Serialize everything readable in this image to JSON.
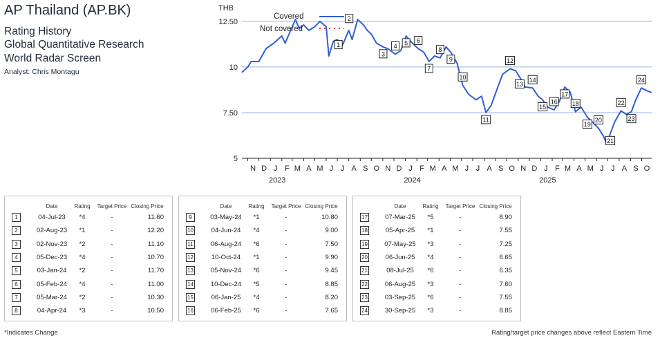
{
  "header": {
    "company": "AP Thailand (AP.BK)",
    "line1": "Rating History",
    "line2": "Global Quantitative Research",
    "line3": "World Radar Screen",
    "analyst": "Analyst: Chris Montagu"
  },
  "chart_data": {
    "type": "line",
    "ylabel": "THB",
    "ylim": [
      5,
      13.25
    ],
    "yticks": [
      5,
      7.5,
      10,
      12.5
    ],
    "ytick_labels": [
      "5",
      "7.50",
      "10",
      "12.50"
    ],
    "grid": true,
    "x_start": "2022-10-16",
    "x_end": "2025-10-28",
    "month_labels": [
      "N",
      "D",
      "J",
      "F",
      "M",
      "A",
      "M",
      "J",
      "J",
      "A",
      "S",
      "O",
      "N",
      "D",
      "J",
      "F",
      "M",
      "A",
      "M",
      "J",
      "J",
      "A",
      "S",
      "O",
      "N",
      "D",
      "J",
      "F",
      "M",
      "A",
      "M",
      "J",
      "J",
      "A",
      "S",
      "O"
    ],
    "year_labels": [
      {
        "label": "2023",
        "date": "2023-01-01"
      },
      {
        "label": "2024",
        "date": "2024-01-01"
      },
      {
        "label": "2025",
        "date": "2025-01-01"
      }
    ],
    "legend": [
      {
        "label": "Covered",
        "style": "solid",
        "color": "#2f5ed8"
      },
      {
        "label": "Not covered",
        "style": "dotted",
        "color": "#e83a3a"
      }
    ],
    "series": [
      {
        "name": "Covered",
        "color": "#2f5ed8",
        "points": [
          [
            "2022-10-16",
            9.7
          ],
          [
            "2022-11-01",
            10.0
          ],
          [
            "2022-11-10",
            10.3
          ],
          [
            "2022-12-01",
            10.3
          ],
          [
            "2022-12-20",
            11.0
          ],
          [
            "2023-01-10",
            11.3
          ],
          [
            "2023-02-01",
            11.7
          ],
          [
            "2023-02-10",
            11.3
          ],
          [
            "2023-03-01",
            12.2
          ],
          [
            "2023-03-10",
            12.6
          ],
          [
            "2023-03-20",
            12.1
          ],
          [
            "2023-04-01",
            12.3
          ],
          [
            "2023-04-15",
            12.0
          ],
          [
            "2023-05-01",
            12.2
          ],
          [
            "2023-05-15",
            12.5
          ],
          [
            "2023-06-01",
            12.2
          ],
          [
            "2023-06-08",
            10.6
          ],
          [
            "2023-06-20",
            11.4
          ],
          [
            "2023-07-01",
            11.5
          ],
          [
            "2023-07-15",
            11.2
          ],
          [
            "2023-08-01",
            12.0
          ],
          [
            "2023-08-10",
            11.5
          ],
          [
            "2023-08-25",
            12.6
          ],
          [
            "2023-09-10",
            12.3
          ],
          [
            "2023-09-20",
            12.0
          ],
          [
            "2023-10-01",
            11.8
          ],
          [
            "2023-10-15",
            11.3
          ],
          [
            "2023-11-01",
            11.1
          ],
          [
            "2023-11-15",
            11.0
          ],
          [
            "2023-12-05",
            10.7
          ],
          [
            "2023-12-20",
            10.9
          ],
          [
            "2024-01-03",
            11.7
          ],
          [
            "2024-01-20",
            11.3
          ],
          [
            "2024-02-05",
            11.0
          ],
          [
            "2024-02-20",
            10.8
          ],
          [
            "2024-03-05",
            10.3
          ],
          [
            "2024-03-20",
            10.6
          ],
          [
            "2024-04-04",
            10.5
          ],
          [
            "2024-04-20",
            11.1
          ],
          [
            "2024-05-03",
            10.8
          ],
          [
            "2024-05-20",
            10.2
          ],
          [
            "2024-06-04",
            9.0
          ],
          [
            "2024-06-20",
            8.5
          ],
          [
            "2024-07-10",
            8.2
          ],
          [
            "2024-07-25",
            8.4
          ],
          [
            "2024-08-06",
            7.5
          ],
          [
            "2024-08-20",
            7.9
          ],
          [
            "2024-09-05",
            8.8
          ],
          [
            "2024-09-20",
            9.6
          ],
          [
            "2024-10-10",
            9.9
          ],
          [
            "2024-10-25",
            9.8
          ],
          [
            "2024-11-05",
            9.45
          ],
          [
            "2024-11-20",
            8.9
          ],
          [
            "2024-12-10",
            8.85
          ],
          [
            "2024-12-25",
            8.4
          ],
          [
            "2025-01-06",
            8.2
          ],
          [
            "2025-01-20",
            7.8
          ],
          [
            "2025-02-06",
            7.65
          ],
          [
            "2025-02-20",
            8.1
          ],
          [
            "2025-03-07",
            8.9
          ],
          [
            "2025-03-22",
            8.6
          ],
          [
            "2025-04-05",
            7.55
          ],
          [
            "2025-04-20",
            7.8
          ],
          [
            "2025-05-07",
            7.25
          ],
          [
            "2025-05-20",
            7.0
          ],
          [
            "2025-06-06",
            6.65
          ],
          [
            "2025-06-20",
            6.2
          ],
          [
            "2025-06-28",
            5.8
          ],
          [
            "2025-07-08",
            6.35
          ],
          [
            "2025-07-20",
            7.0
          ],
          [
            "2025-08-06",
            7.6
          ],
          [
            "2025-08-20",
            7.4
          ],
          [
            "2025-09-03",
            7.55
          ],
          [
            "2025-09-15",
            8.2
          ],
          [
            "2025-09-30",
            8.85
          ],
          [
            "2025-10-15",
            8.7
          ],
          [
            "2025-10-28",
            8.6
          ]
        ]
      }
    ],
    "markers": [
      {
        "n": "1",
        "date": "2023-07-04",
        "value": 11.6
      },
      {
        "n": "2",
        "date": "2023-08-02",
        "value": 12.2
      },
      {
        "n": "3",
        "date": "2023-11-02",
        "value": 11.1
      },
      {
        "n": "4",
        "date": "2023-12-05",
        "value": 10.7
      },
      {
        "n": "5",
        "date": "2024-01-03",
        "value": 11.7
      },
      {
        "n": "6",
        "date": "2024-02-05",
        "value": 11.0
      },
      {
        "n": "7",
        "date": "2024-03-05",
        "value": 10.3
      },
      {
        "n": "8",
        "date": "2024-04-04",
        "value": 10.5
      },
      {
        "n": "9",
        "date": "2024-05-03",
        "value": 10.8
      },
      {
        "n": "10",
        "date": "2024-06-04",
        "value": 9.0
      },
      {
        "n": "11",
        "date": "2024-08-06",
        "value": 7.5
      },
      {
        "n": "12",
        "date": "2024-10-10",
        "value": 9.9
      },
      {
        "n": "13",
        "date": "2024-11-05",
        "value": 9.45
      },
      {
        "n": "14",
        "date": "2024-12-10",
        "value": 8.85
      },
      {
        "n": "15",
        "date": "2025-01-06",
        "value": 8.2
      },
      {
        "n": "16",
        "date": "2025-02-06",
        "value": 7.65
      },
      {
        "n": "17",
        "date": "2025-03-07",
        "value": 8.9
      },
      {
        "n": "18",
        "date": "2025-04-05",
        "value": 7.55
      },
      {
        "n": "19",
        "date": "2025-05-07",
        "value": 7.25
      },
      {
        "n": "20",
        "date": "2025-06-06",
        "value": 6.65
      },
      {
        "n": "21",
        "date": "2025-07-08",
        "value": 6.35
      },
      {
        "n": "22",
        "date": "2025-08-06",
        "value": 7.6
      },
      {
        "n": "23",
        "date": "2025-09-03",
        "value": 7.55
      },
      {
        "n": "24",
        "date": "2025-09-30",
        "value": 8.85
      }
    ]
  },
  "tables": {
    "headers": {
      "date": "Date",
      "rating": "Rating",
      "target": "Target Price",
      "closing": "Closing Price"
    },
    "rows": [
      {
        "n": "1",
        "date": "04-Jul-23",
        "rating": "*4",
        "target": "-",
        "closing": "11.60"
      },
      {
        "n": "2",
        "date": "02-Aug-23",
        "rating": "*1",
        "target": "-",
        "closing": "12.20"
      },
      {
        "n": "3",
        "date": "02-Nov-23",
        "rating": "*2",
        "target": "-",
        "closing": "11.10"
      },
      {
        "n": "4",
        "date": "05-Dec-23",
        "rating": "*4",
        "target": "-",
        "closing": "10.70"
      },
      {
        "n": "5",
        "date": "03-Jan-24",
        "rating": "*2",
        "target": "-",
        "closing": "11.70"
      },
      {
        "n": "6",
        "date": "05-Feb-24",
        "rating": "*4",
        "target": "-",
        "closing": "11.00"
      },
      {
        "n": "7",
        "date": "05-Mar-24",
        "rating": "*2",
        "target": "-",
        "closing": "10.30"
      },
      {
        "n": "8",
        "date": "04-Apr-24",
        "rating": "*3",
        "target": "-",
        "closing": "10.50"
      },
      {
        "n": "9",
        "date": "03-May-24",
        "rating": "*1",
        "target": "-",
        "closing": "10.80"
      },
      {
        "n": "10",
        "date": "04-Jun-24",
        "rating": "*4",
        "target": "-",
        "closing": "9.00"
      },
      {
        "n": "11",
        "date": "06-Aug-24",
        "rating": "*6",
        "target": "-",
        "closing": "7.50"
      },
      {
        "n": "12",
        "date": "10-Oct-24",
        "rating": "*1",
        "target": "-",
        "closing": "9.90"
      },
      {
        "n": "13",
        "date": "05-Nov-24",
        "rating": "*6",
        "target": "-",
        "closing": "9.45"
      },
      {
        "n": "14",
        "date": "10-Dec-24",
        "rating": "*5",
        "target": "-",
        "closing": "8.85"
      },
      {
        "n": "15",
        "date": "06-Jan-25",
        "rating": "*4",
        "target": "-",
        "closing": "8.20"
      },
      {
        "n": "16",
        "date": "06-Feb-25",
        "rating": "*6",
        "target": "-",
        "closing": "7.65"
      },
      {
        "n": "17",
        "date": "07-Mar-25",
        "rating": "*5",
        "target": "-",
        "closing": "8.90"
      },
      {
        "n": "18",
        "date": "05-Apr-25",
        "rating": "*1",
        "target": "-",
        "closing": "7.55"
      },
      {
        "n": "19",
        "date": "07-May-25",
        "rating": "*3",
        "target": "-",
        "closing": "7.25"
      },
      {
        "n": "20",
        "date": "06-Jun-25",
        "rating": "*4",
        "target": "-",
        "closing": "6.65"
      },
      {
        "n": "21",
        "date": "08-Jul-25",
        "rating": "*6",
        "target": "-",
        "closing": "6.35"
      },
      {
        "n": "22",
        "date": "06-Aug-25",
        "rating": "*3",
        "target": "-",
        "closing": "7.60"
      },
      {
        "n": "23",
        "date": "03-Sep-25",
        "rating": "*6",
        "target": "-",
        "closing": "7.55"
      },
      {
        "n": "24",
        "date": "30-Sep-25",
        "rating": "*3",
        "target": "-",
        "closing": "8.85"
      }
    ]
  },
  "footer": {
    "left": "*Indicates Change",
    "right": "Rating/target price changes above reflect Eastern Time"
  }
}
